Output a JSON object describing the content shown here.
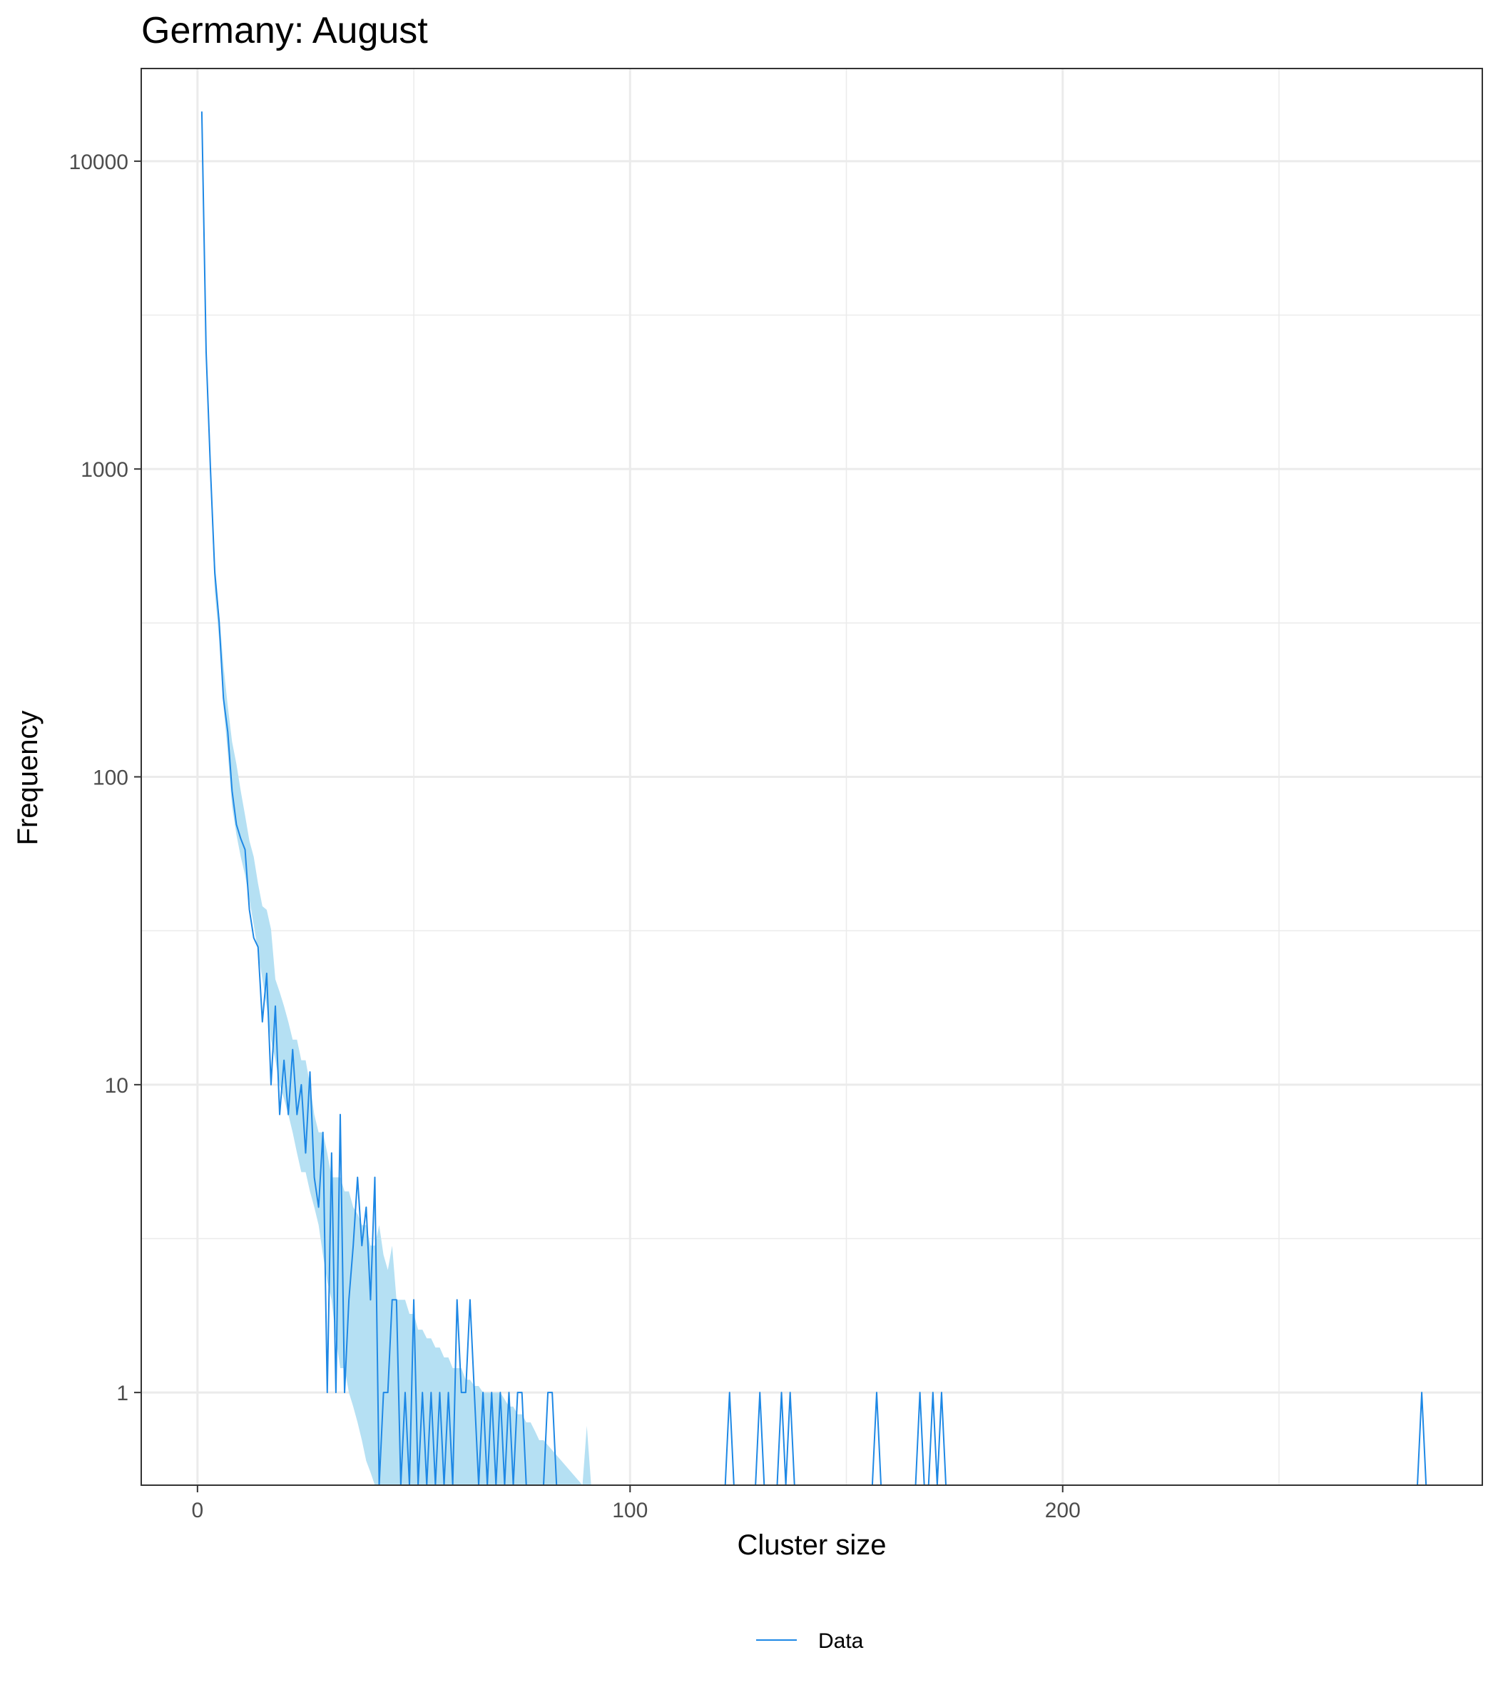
{
  "chart_data": {
    "type": "line",
    "title": "Germany: August",
    "xlabel": "Cluster size",
    "ylabel": "Frequency",
    "x_scale": "linear",
    "y_scale": "log",
    "xlim": [
      -13,
      297
    ],
    "ylim": [
      0.5,
      20000
    ],
    "x_ticks": [
      0,
      100,
      200
    ],
    "y_ticks": [
      1,
      10,
      100,
      1000,
      10000
    ],
    "y_tick_labels": [
      "1",
      "10",
      "100",
      "1000",
      "10000"
    ],
    "grid": true,
    "legend": {
      "position": "bottom",
      "entries": [
        "Data"
      ]
    },
    "colors": {
      "line": "#1e88e5",
      "band": "#b5e0f3",
      "grid": "#ebebeb",
      "panel_border": "#333333"
    },
    "series": [
      {
        "name": "Data",
        "points": [
          [
            1,
            14500
          ],
          [
            2,
            2400
          ],
          [
            3,
            1000
          ],
          [
            4,
            460
          ],
          [
            5,
            320
          ],
          [
            6,
            180
          ],
          [
            7,
            140
          ],
          [
            8,
            90
          ],
          [
            9,
            70
          ],
          [
            10,
            63
          ],
          [
            11,
            58
          ],
          [
            12,
            37
          ],
          [
            13,
            30
          ],
          [
            14,
            28
          ],
          [
            15,
            16
          ],
          [
            16,
            23
          ],
          [
            17,
            10
          ],
          [
            18,
            18
          ],
          [
            19,
            8
          ],
          [
            20,
            12
          ],
          [
            21,
            8
          ],
          [
            22,
            13
          ],
          [
            23,
            8
          ],
          [
            24,
            10
          ],
          [
            25,
            6
          ],
          [
            26,
            11
          ],
          [
            27,
            5
          ],
          [
            28,
            4
          ],
          [
            29,
            7
          ],
          [
            30,
            1
          ],
          [
            31,
            6
          ],
          [
            32,
            1
          ],
          [
            33,
            8
          ],
          [
            34,
            1
          ],
          [
            35,
            2
          ],
          [
            36,
            3
          ],
          [
            37,
            5
          ],
          [
            38,
            3
          ],
          [
            39,
            4
          ],
          [
            40,
            2
          ],
          [
            41,
            5
          ],
          [
            42,
            0.5
          ],
          [
            43,
            1
          ],
          [
            44,
            1
          ],
          [
            45,
            2
          ],
          [
            46,
            2
          ],
          [
            47,
            0.5
          ],
          [
            48,
            1
          ],
          [
            49,
            0.5
          ],
          [
            50,
            2
          ],
          [
            51,
            0.5
          ],
          [
            52,
            1
          ],
          [
            53,
            0.5
          ],
          [
            54,
            1
          ],
          [
            55,
            0.5
          ],
          [
            56,
            1
          ],
          [
            57,
            0.5
          ],
          [
            58,
            1
          ],
          [
            59,
            0.5
          ],
          [
            60,
            2
          ],
          [
            61,
            1
          ],
          [
            62,
            1
          ],
          [
            63,
            2
          ],
          [
            64,
            1
          ],
          [
            65,
            0.5
          ],
          [
            66,
            1
          ],
          [
            67,
            0.5
          ],
          [
            68,
            1
          ],
          [
            69,
            0.5
          ],
          [
            70,
            1
          ],
          [
            71,
            0.5
          ],
          [
            72,
            1
          ],
          [
            73,
            0.5
          ],
          [
            74,
            1
          ],
          [
            75,
            1
          ],
          [
            76,
            0.5
          ],
          [
            77,
            0.5
          ],
          [
            78,
            0.5
          ],
          [
            79,
            0.5
          ],
          [
            80,
            0.5
          ],
          [
            81,
            1
          ],
          [
            82,
            1
          ],
          [
            83,
            0.5
          ],
          [
            122,
            0.5
          ],
          [
            123,
            1
          ],
          [
            124,
            0.5
          ],
          [
            129,
            0.5
          ],
          [
            130,
            1
          ],
          [
            131,
            0.5
          ],
          [
            134,
            0.5
          ],
          [
            135,
            1
          ],
          [
            136,
            0.5
          ],
          [
            137,
            1
          ],
          [
            138,
            0.5
          ],
          [
            156,
            0.5
          ],
          [
            157,
            1
          ],
          [
            158,
            0.5
          ],
          [
            166,
            0.5
          ],
          [
            167,
            1
          ],
          [
            168,
            0.5
          ],
          [
            169,
            0.5
          ],
          [
            170,
            1
          ],
          [
            171,
            0.5
          ],
          [
            172,
            1
          ],
          [
            173,
            0.5
          ],
          [
            282,
            0.5
          ],
          [
            283,
            1
          ],
          [
            284,
            0.5
          ]
        ]
      }
    ],
    "band": {
      "x": [
        1,
        2,
        3,
        4,
        5,
        6,
        7,
        8,
        9,
        10,
        11,
        12,
        13,
        14,
        15,
        16,
        17,
        18,
        19,
        20,
        21,
        22,
        23,
        24,
        25,
        26,
        27,
        28,
        29,
        30,
        31,
        32,
        33,
        34,
        35,
        36,
        37,
        38,
        39,
        40,
        41,
        42,
        43,
        44,
        45,
        46,
        47,
        48,
        49,
        50,
        51,
        52,
        53,
        54,
        55,
        56,
        57,
        58,
        59,
        60,
        61,
        62,
        63,
        64,
        65,
        66,
        67,
        68,
        69,
        70,
        71,
        72,
        73,
        74,
        75,
        76,
        77,
        78,
        79,
        80,
        89,
        90,
        91
      ],
      "upper": [
        14000,
        2600,
        1050,
        500,
        340,
        230,
        170,
        130,
        110,
        90,
        75,
        62,
        55,
        45,
        38,
        37,
        32,
        22,
        20,
        18,
        16,
        14,
        14,
        12,
        12,
        10,
        8,
        7,
        7,
        6,
        5,
        5,
        5,
        4.5,
        4.5,
        4,
        3.8,
        3.5,
        3.5,
        3,
        3,
        3.5,
        2.8,
        2.5,
        3,
        2,
        2,
        2,
        1.8,
        1.8,
        1.6,
        1.6,
        1.5,
        1.5,
        1.4,
        1.4,
        1.3,
        1.3,
        1.2,
        1.2,
        1.2,
        1.1,
        1.1,
        1.05,
        1.05,
        1,
        1,
        1,
        1,
        1,
        0.95,
        0.9,
        0.9,
        0.85,
        0.85,
        0.8,
        0.8,
        0.75,
        0.7,
        0.7,
        0.5,
        0.78,
        0.5
      ],
      "lower": [
        13000,
        2200,
        900,
        400,
        280,
        170,
        120,
        80,
        65,
        55,
        48,
        40,
        33,
        27,
        22,
        18,
        14,
        12,
        10,
        9,
        8,
        7,
        6,
        5.2,
        5.2,
        4.5,
        4,
        3.5,
        2.8,
        2.3,
        2,
        1.5,
        1.2,
        1.2,
        1,
        0.9,
        0.8,
        0.7,
        0.6,
        0.55,
        0.5,
        0.5,
        0.5,
        0.5,
        0.5,
        0.5,
        0.5,
        0.5,
        0.5,
        0.5,
        0.5,
        0.5,
        0.5,
        0.5,
        0.5,
        0.5,
        0.5,
        0.5,
        0.5,
        0.5,
        0.5,
        0.5,
        0.5,
        0.5,
        0.5,
        0.5,
        0.5,
        0.5,
        0.5,
        0.5,
        0.5,
        0.5,
        0.5,
        0.5,
        0.5,
        0.5,
        0.5,
        0.5,
        0.5,
        0.5,
        0.5,
        0.5,
        0.5
      ]
    }
  }
}
